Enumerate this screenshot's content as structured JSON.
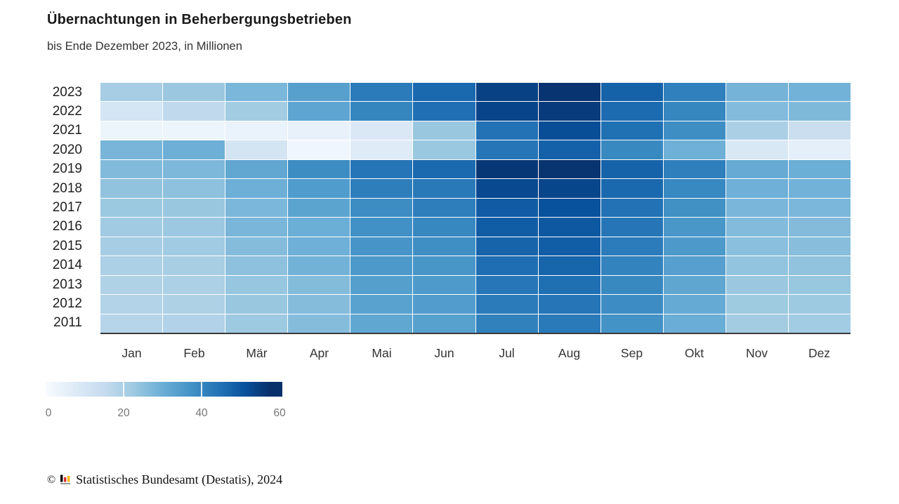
{
  "chart_data": {
    "type": "heatmap",
    "title": "Übernachtungen in Beherbergungsbetrieben",
    "subtitle": "bis Ende Dezember 2023, in Millionen",
    "unit": "Millionen Übernachtungen",
    "x_categories": [
      "Jan",
      "Feb",
      "Mär",
      "Apr",
      "Mai",
      "Jun",
      "Jul",
      "Aug",
      "Sep",
      "Okt",
      "Nov",
      "Dez"
    ],
    "y_categories": [
      "2023",
      "2022",
      "2021",
      "2020",
      "2019",
      "2018",
      "2017",
      "2016",
      "2015",
      "2014",
      "2013",
      "2012",
      "2011"
    ],
    "values": [
      [
        20.9,
        22.9,
        27.5,
        33.6,
        42.6,
        46.6,
        54.1,
        56.7,
        47.9,
        41.4,
        28.5,
        28.8
      ],
      [
        10.5,
        16.0,
        21.7,
        32.3,
        40.4,
        45.2,
        53.6,
        55.4,
        46.0,
        40.0,
        26.5,
        26.9
      ],
      [
        2.9,
        3.0,
        4.0,
        4.5,
        8.7,
        23.1,
        44.7,
        51.8,
        45.0,
        38.2,
        20.0,
        13.6
      ],
      [
        28.0,
        29.5,
        10.8,
        2.2,
        7.3,
        23.0,
        44.0,
        48.0,
        39.5,
        29.4,
        8.9,
        5.8
      ],
      [
        26.6,
        27.3,
        31.8,
        38.5,
        43.9,
        46.3,
        56.1,
        56.8,
        47.7,
        41.7,
        30.7,
        29.7
      ],
      [
        24.2,
        24.9,
        29.5,
        34.8,
        41.9,
        43.1,
        52.8,
        53.2,
        46.5,
        39.7,
        29.4,
        28.8
      ],
      [
        22.8,
        23.1,
        27.5,
        32.7,
        38.5,
        41.8,
        49.1,
        51.1,
        44.7,
        37.7,
        27.7,
        27.5
      ],
      [
        21.8,
        22.7,
        27.8,
        29.9,
        37.5,
        39.8,
        48.9,
        49.8,
        43.8,
        36.1,
        26.5,
        26.3
      ],
      [
        20.9,
        21.9,
        26.1,
        29.4,
        36.5,
        38.1,
        47.4,
        48.6,
        42.3,
        35.3,
        25.4,
        25.6
      ],
      [
        19.8,
        20.6,
        24.7,
        28.9,
        35.6,
        36.3,
        45.4,
        47.3,
        40.8,
        33.8,
        24.0,
        24.2
      ],
      [
        19.1,
        19.9,
        23.4,
        26.4,
        33.9,
        35.1,
        43.7,
        45.3,
        39.4,
        32.1,
        22.9,
        23.3
      ],
      [
        18.6,
        19.5,
        23.2,
        26.1,
        33.1,
        34.6,
        42.5,
        44.0,
        38.4,
        31.0,
        22.2,
        22.4
      ],
      [
        17.8,
        18.8,
        22.4,
        26.1,
        31.9,
        33.5,
        41.3,
        42.7,
        37.0,
        30.1,
        21.4,
        21.6
      ]
    ],
    "color_scale": {
      "colormap": "blues",
      "stop_colors": [
        "#f7fbff",
        "#deebf7",
        "#c6dbef",
        "#9ecae1",
        "#6baed6",
        "#4292c6",
        "#2171b5",
        "#08519c",
        "#08306b"
      ],
      "stop_positions": [
        0,
        0.13,
        0.26,
        0.39,
        0.52,
        0.65,
        0.78,
        0.89,
        1
      ],
      "value_at_darkest": 57.5,
      "legend_min": 0,
      "legend_max": 60.7,
      "legend_ticks": [
        0,
        20,
        40,
        60
      ],
      "legend_position": "bottom-left"
    },
    "grid": "off"
  },
  "footer": {
    "copyright_symbol": "©",
    "source_text": "Statistisches Bundesamt (Destatis), 2024",
    "logo_icon": "destatis-bar-chart-icon",
    "logo_colors": {
      "bar1": "#000000",
      "bar2": "#e02d2d",
      "bar3": "#f5b800",
      "baseline": "#9a9a9a"
    }
  }
}
